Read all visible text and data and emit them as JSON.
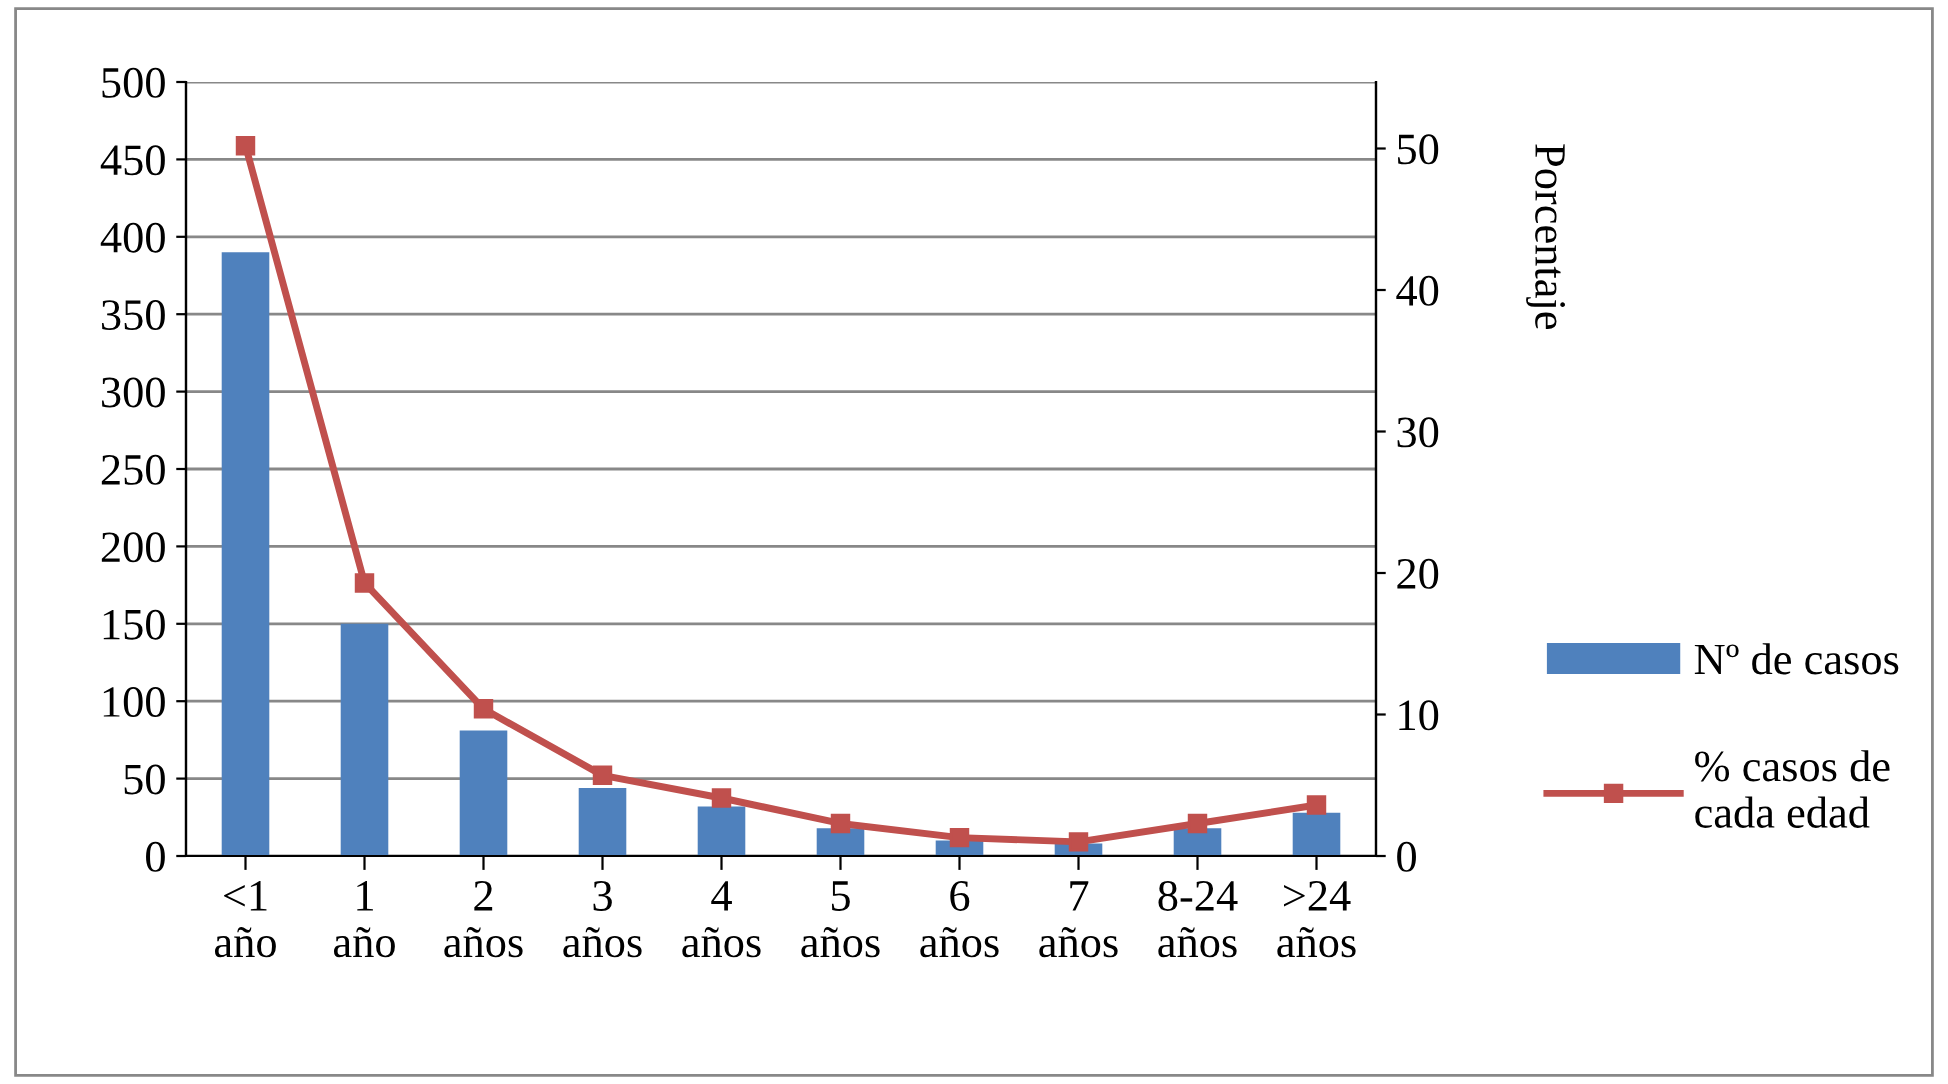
{
  "chart_data": {
    "type": "bar",
    "categories": [
      "<1\naño",
      "1\naño",
      "2\naños",
      "3\naños",
      "4\naños",
      "5\naños",
      "6\naños",
      "7\naños",
      "8-24\naños",
      ">24\naños"
    ],
    "series": [
      {
        "name": "Nº de casos",
        "color": "#4f81bd",
        "values": [
          390,
          150,
          81,
          44,
          32,
          18,
          10,
          8,
          18,
          28
        ]
      },
      {
        "name": "% casos de\ncada edad",
        "type": "line",
        "axis": "y2",
        "color": "#c0504d",
        "marker": "square",
        "values": [
          50.2,
          19.3,
          10.4,
          5.7,
          4.1,
          2.3,
          1.3,
          1.0,
          2.3,
          3.6
        ]
      }
    ],
    "y2label": "Porcentaje",
    "ylim": [
      0,
      500
    ],
    "yticks": [
      0,
      50,
      100,
      150,
      200,
      250,
      300,
      350,
      400,
      450,
      500
    ],
    "y2lim": [
      0,
      54.7
    ],
    "y2ticks": [
      0,
      10,
      20,
      30,
      40,
      50
    ],
    "grid": "y",
    "legend": "right"
  }
}
